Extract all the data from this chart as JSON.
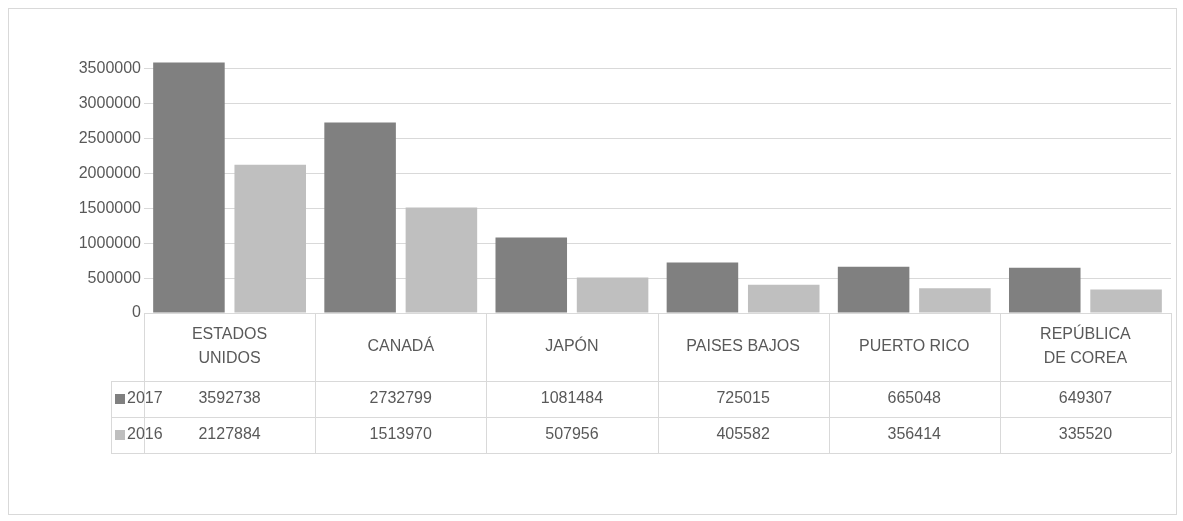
{
  "chart_data": {
    "type": "bar",
    "categories": [
      "ESTADOS UNIDOS",
      "CANADÁ",
      "JAPÓN",
      "PAISES BAJOS",
      "PUERTO RICO",
      "REPÚBLICA DE COREA"
    ],
    "series": [
      {
        "name": "2017",
        "color": "#808080",
        "values": [
          3592738,
          2732799,
          1081484,
          725015,
          665048,
          649307
        ]
      },
      {
        "name": "2016",
        "color": "#bfbfbf",
        "values": [
          2127884,
          1513970,
          507956,
          405582,
          356414,
          335520
        ]
      }
    ],
    "ylim": [
      0,
      3600000
    ],
    "yticks": [
      0,
      500000,
      1000000,
      1500000,
      2000000,
      2500000,
      3000000,
      3500000
    ],
    "grid": "y",
    "legend": "bottom",
    "data_labels": true
  }
}
